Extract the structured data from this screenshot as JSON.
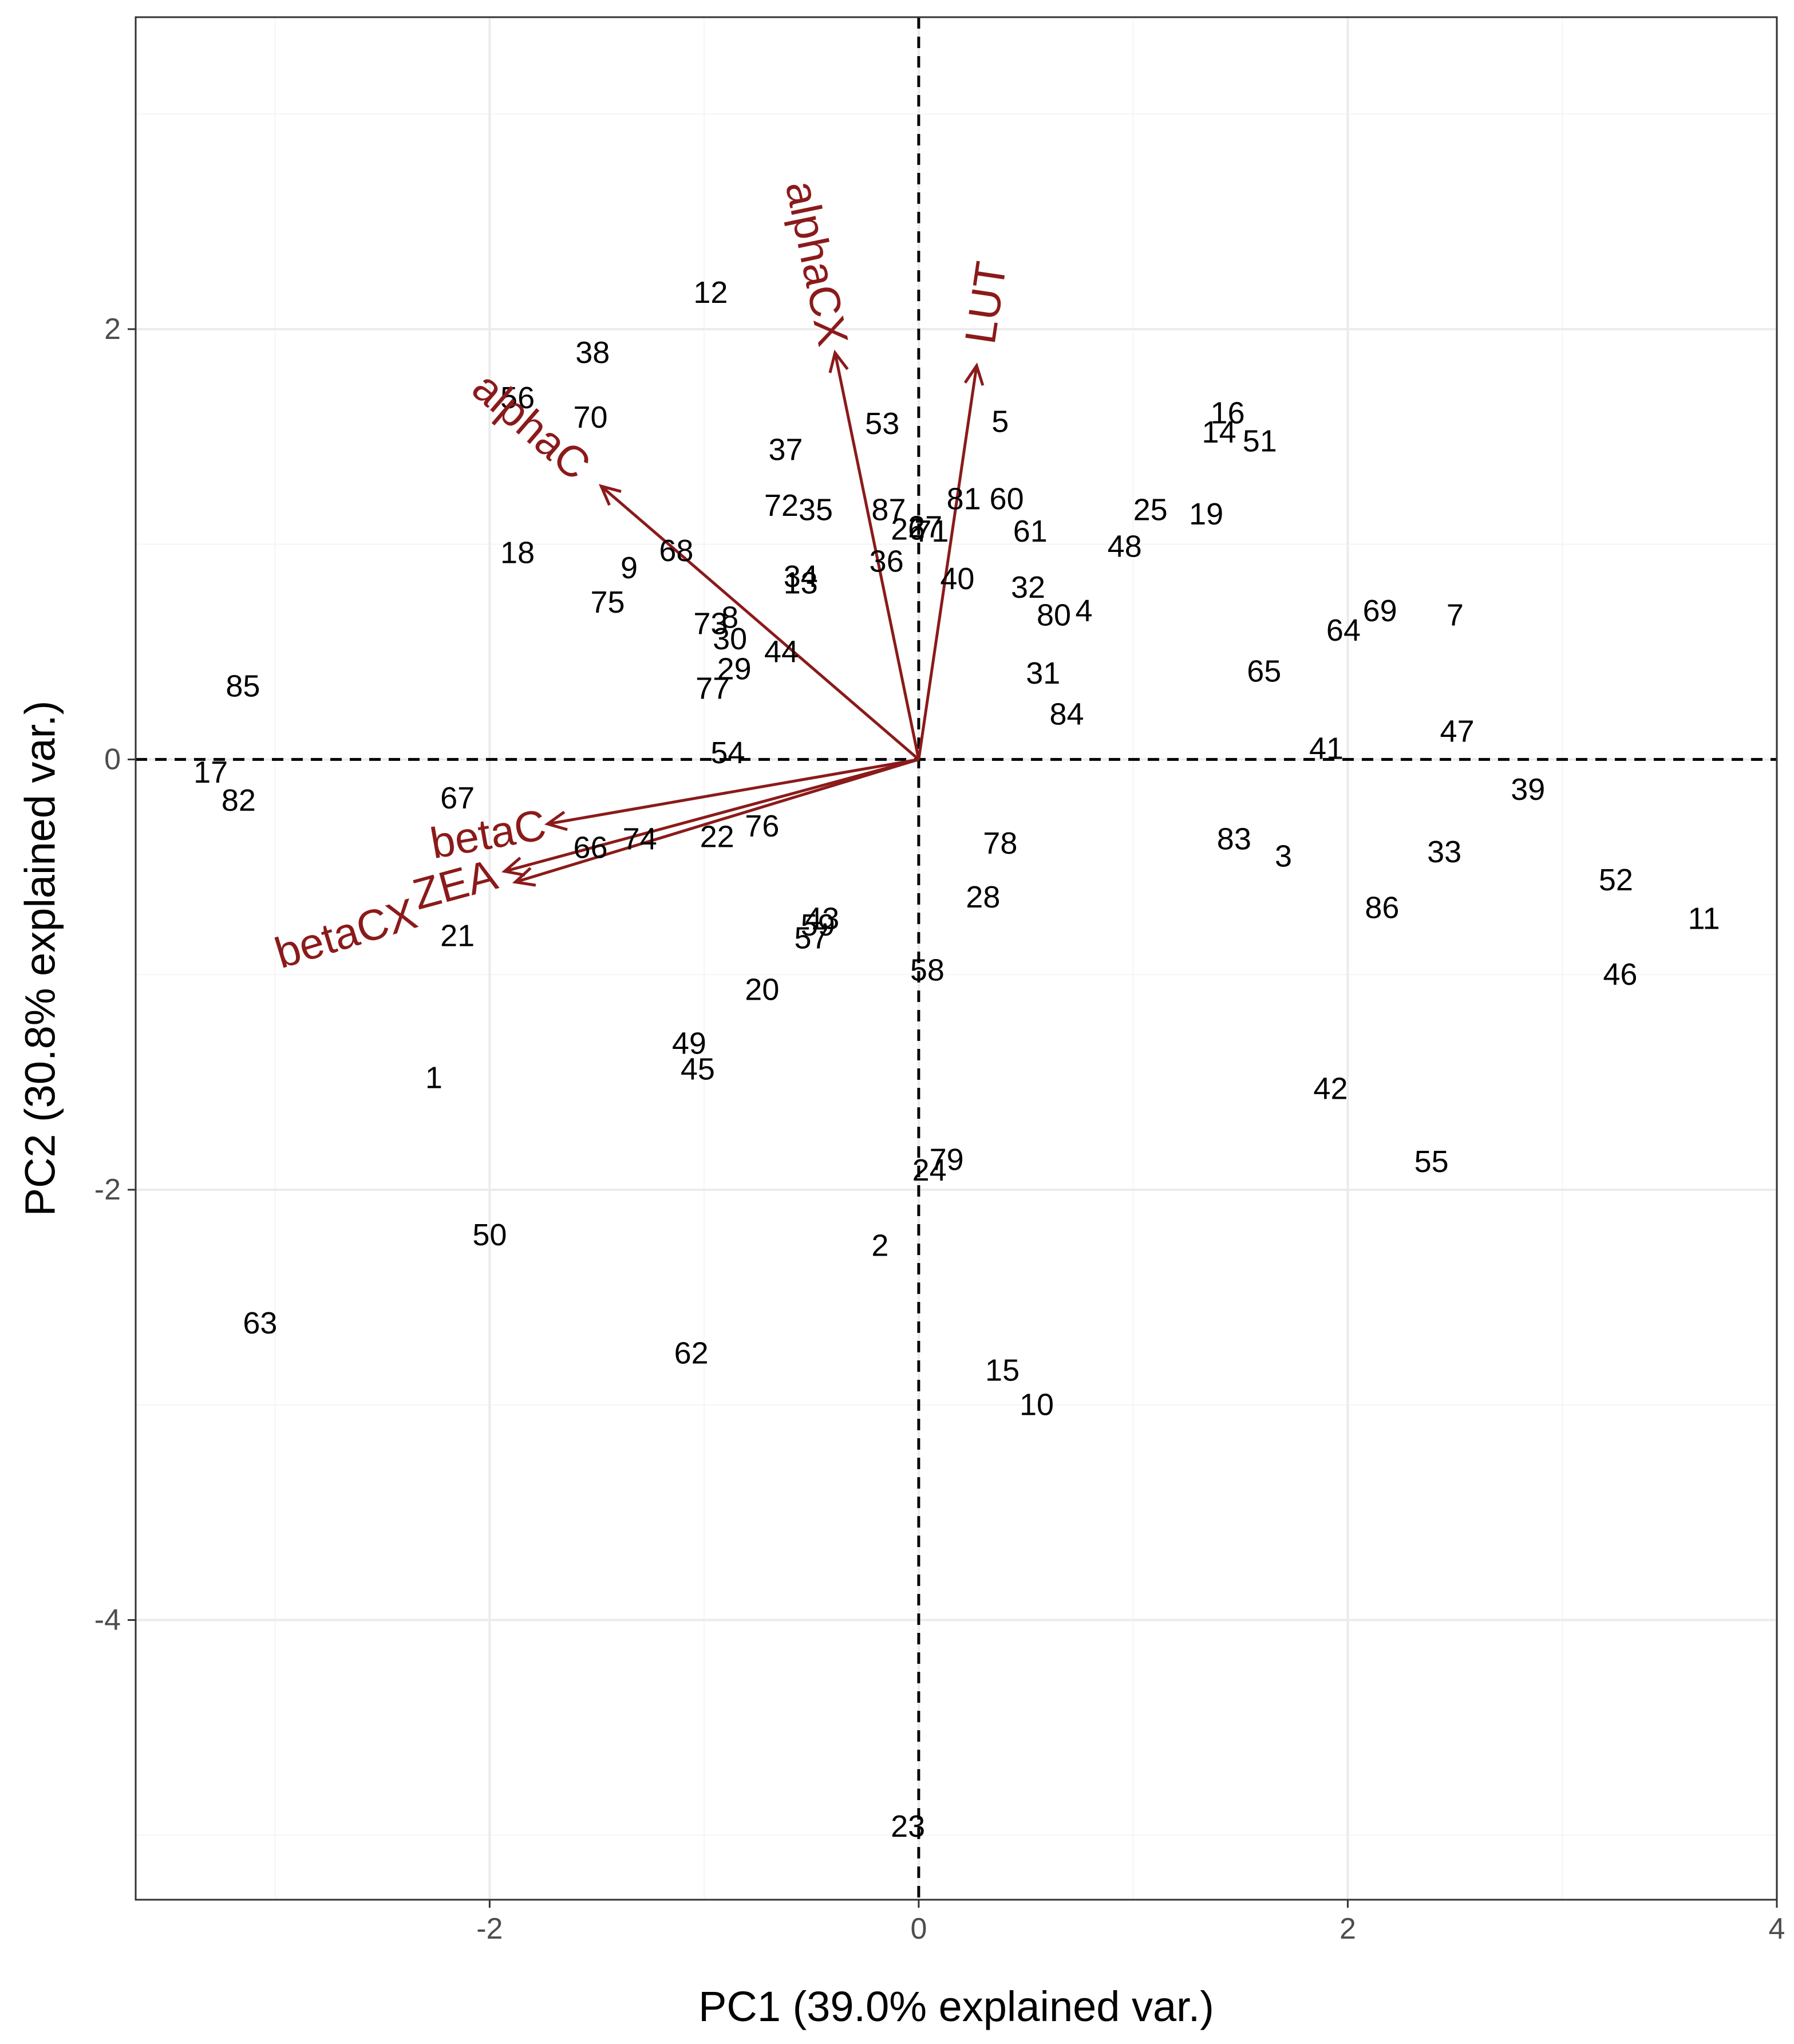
{
  "colors": {
    "arrow": "#8b1a1a",
    "grid_major": "#ebebeb",
    "grid_minor": "#f5f5f5",
    "panel_border": "#333333",
    "text": "#000000",
    "tick_text": "#4d4d4d"
  },
  "chart_data": {
    "type": "scatter",
    "subtype": "pca-biplot",
    "xlabel": "PC1 (39.0% explained var.)",
    "ylabel": "PC2 (30.8% explained var.)",
    "xlim": [
      -3.65,
      4.0
    ],
    "ylim": [
      -5.3,
      3.45
    ],
    "x_ticks": [
      -2,
      0,
      2,
      4
    ],
    "x_tick_labels": [
      "-2",
      "0",
      "2",
      "4"
    ],
    "y_ticks": [
      -4,
      -2,
      0,
      2
    ],
    "y_tick_labels": [
      "-4",
      "-2",
      "0",
      "2"
    ],
    "grid": true,
    "reference_lines": {
      "x": 0,
      "y": 0,
      "style": "dashed"
    },
    "points": [
      {
        "label": "1",
        "x": -2.26,
        "y": -1.48
      },
      {
        "label": "2",
        "x": -0.18,
        "y": -2.26
      },
      {
        "label": "3",
        "x": 1.7,
        "y": -0.45
      },
      {
        "label": "4",
        "x": 0.77,
        "y": 0.69
      },
      {
        "label": "5",
        "x": 0.38,
        "y": 1.57
      },
      {
        "label": "7",
        "x": 2.5,
        "y": 0.67
      },
      {
        "label": "8",
        "x": -0.88,
        "y": 0.66
      },
      {
        "label": "9",
        "x": -1.35,
        "y": 0.89
      },
      {
        "label": "10",
        "x": 0.55,
        "y": -3.0
      },
      {
        "label": "11",
        "x": 3.66,
        "y": -0.74
      },
      {
        "label": "12",
        "x": -0.97,
        "y": 2.17
      },
      {
        "label": "13",
        "x": -0.55,
        "y": 0.82
      },
      {
        "label": "14",
        "x": 1.4,
        "y": 1.52
      },
      {
        "label": "15",
        "x": 0.39,
        "y": -2.84
      },
      {
        "label": "16",
        "x": 1.44,
        "y": 1.61
      },
      {
        "label": "17",
        "x": -3.3,
        "y": -0.06
      },
      {
        "label": "18",
        "x": -1.87,
        "y": 0.96
      },
      {
        "label": "19",
        "x": 1.34,
        "y": 1.14
      },
      {
        "label": "20",
        "x": -0.73,
        "y": -1.07
      },
      {
        "label": "21",
        "x": -2.15,
        "y": -0.82
      },
      {
        "label": "22",
        "x": -0.94,
        "y": -0.36
      },
      {
        "label": "23",
        "x": -0.05,
        "y": -4.96
      },
      {
        "label": "24",
        "x": 0.05,
        "y": -1.91
      },
      {
        "label": "25",
        "x": 1.08,
        "y": 1.16
      },
      {
        "label": "26",
        "x": -0.05,
        "y": 1.07
      },
      {
        "label": "27",
        "x": 0.03,
        "y": 1.08
      },
      {
        "label": "28",
        "x": 0.3,
        "y": -0.64
      },
      {
        "label": "29",
        "x": -0.86,
        "y": 0.42
      },
      {
        "label": "30",
        "x": -0.88,
        "y": 0.56
      },
      {
        "label": "31",
        "x": 0.58,
        "y": 0.4
      },
      {
        "label": "32",
        "x": 0.51,
        "y": 0.8
      },
      {
        "label": "33",
        "x": 2.45,
        "y": -0.43
      },
      {
        "label": "34",
        "x": -0.55,
        "y": 0.85
      },
      {
        "label": "35",
        "x": -0.48,
        "y": 1.16
      },
      {
        "label": "36",
        "x": -0.15,
        "y": 0.92
      },
      {
        "label": "37",
        "x": -0.62,
        "y": 1.44
      },
      {
        "label": "38",
        "x": -1.52,
        "y": 1.89
      },
      {
        "label": "39",
        "x": 2.84,
        "y": -0.14
      },
      {
        "label": "40",
        "x": 0.18,
        "y": 0.84
      },
      {
        "label": "41",
        "x": 1.9,
        "y": 0.05
      },
      {
        "label": "42",
        "x": 1.92,
        "y": -1.53
      },
      {
        "label": "43",
        "x": -0.45,
        "y": -0.74
      },
      {
        "label": "44",
        "x": -0.64,
        "y": 0.5
      },
      {
        "label": "45",
        "x": -1.03,
        "y": -1.44
      },
      {
        "label": "46",
        "x": 3.27,
        "y": -1.0
      },
      {
        "label": "47",
        "x": 2.51,
        "y": 0.13
      },
      {
        "label": "48",
        "x": 0.96,
        "y": 0.99
      },
      {
        "label": "49",
        "x": -1.07,
        "y": -1.32
      },
      {
        "label": "50",
        "x": -2.0,
        "y": -2.21
      },
      {
        "label": "51",
        "x": 1.59,
        "y": 1.48
      },
      {
        "label": "52",
        "x": 3.25,
        "y": -0.56
      },
      {
        "label": "53",
        "x": -0.17,
        "y": 1.56
      },
      {
        "label": "54",
        "x": -0.89,
        "y": 0.03
      },
      {
        "label": "55",
        "x": 2.39,
        "y": -1.87
      },
      {
        "label": "56",
        "x": -1.87,
        "y": 1.68
      },
      {
        "label": "57",
        "x": -0.5,
        "y": -0.83
      },
      {
        "label": "58",
        "x": 0.04,
        "y": -0.98
      },
      {
        "label": "59",
        "x": -0.47,
        "y": -0.77
      },
      {
        "label": "60",
        "x": 0.41,
        "y": 1.21
      },
      {
        "label": "61",
        "x": 0.52,
        "y": 1.06
      },
      {
        "label": "62",
        "x": -1.06,
        "y": -2.76
      },
      {
        "label": "63",
        "x": -3.07,
        "y": -2.62
      },
      {
        "label": "64",
        "x": 1.98,
        "y": 0.6
      },
      {
        "label": "65",
        "x": 1.61,
        "y": 0.41
      },
      {
        "label": "66",
        "x": -1.53,
        "y": -0.41
      },
      {
        "label": "67",
        "x": -2.15,
        "y": -0.18
      },
      {
        "label": "68",
        "x": -1.13,
        "y": 0.97
      },
      {
        "label": "69",
        "x": 2.15,
        "y": 0.69
      },
      {
        "label": "70",
        "x": -1.53,
        "y": 1.59
      },
      {
        "label": "71",
        "x": 0.06,
        "y": 1.06
      },
      {
        "label": "72",
        "x": -0.64,
        "y": 1.18
      },
      {
        "label": "73",
        "x": -0.97,
        "y": 0.63
      },
      {
        "label": "74",
        "x": -1.3,
        "y": -0.37
      },
      {
        "label": "75",
        "x": -1.45,
        "y": 0.73
      },
      {
        "label": "76",
        "x": -0.73,
        "y": -0.31
      },
      {
        "label": "77",
        "x": -0.96,
        "y": 0.33
      },
      {
        "label": "78",
        "x": 0.38,
        "y": -0.39
      },
      {
        "label": "79",
        "x": 0.13,
        "y": -1.86
      },
      {
        "label": "80",
        "x": 0.63,
        "y": 0.67
      },
      {
        "label": "81",
        "x": 0.21,
        "y": 1.21
      },
      {
        "label": "82",
        "x": -3.17,
        "y": -0.19
      },
      {
        "label": "83",
        "x": 1.47,
        "y": -0.37
      },
      {
        "label": "84",
        "x": 0.69,
        "y": 0.21
      },
      {
        "label": "85",
        "x": -3.15,
        "y": 0.34
      },
      {
        "label": "86",
        "x": 2.16,
        "y": -0.69
      },
      {
        "label": "87",
        "x": -0.14,
        "y": 1.16
      }
    ],
    "loadings": [
      {
        "label": "alphaC",
        "x": -1.48,
        "y": 1.27
      },
      {
        "label": "alphaCX",
        "x": -0.39,
        "y": 1.89
      },
      {
        "label": "LUT",
        "x": 0.27,
        "y": 1.83
      },
      {
        "label": "betaC",
        "x": -1.73,
        "y": -0.3
      },
      {
        "label": "betaCX",
        "x": -1.88,
        "y": -0.57
      },
      {
        "label": "ZEA",
        "x": -1.93,
        "y": -0.52
      }
    ]
  }
}
